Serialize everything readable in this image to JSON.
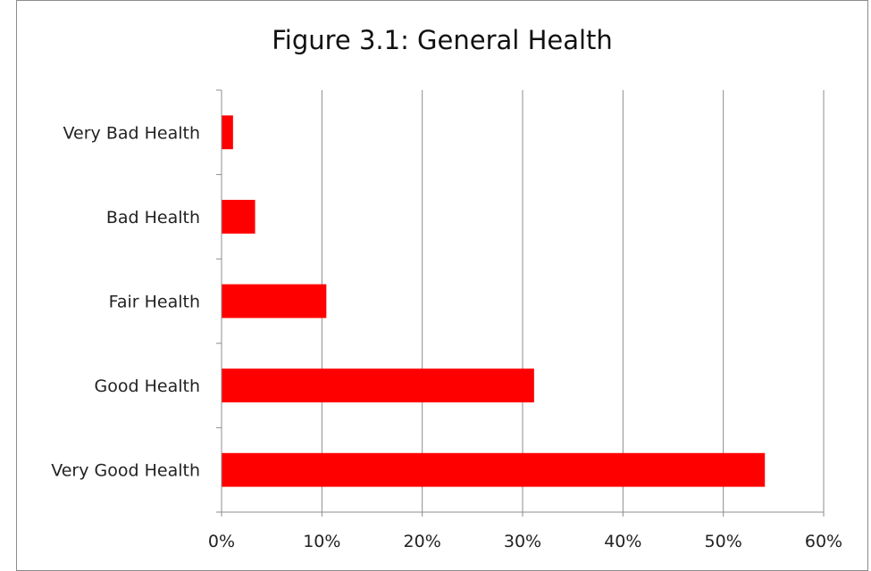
{
  "chart_data": {
    "type": "bar",
    "orientation": "horizontal",
    "title": "Figure 3.1: General Health",
    "xlabel": "",
    "ylabel": "",
    "categories": [
      "Very Bad Health",
      "Bad Health",
      "Fair Health",
      "Good Health",
      "Very Good Health"
    ],
    "values": [
      1.1,
      3.3,
      10.4,
      31.1,
      54.1
    ],
    "xlim": [
      0,
      60
    ],
    "x_ticks": [
      0,
      10,
      20,
      30,
      40,
      50,
      60
    ],
    "x_tick_labels": [
      "0%",
      "10%",
      "20%",
      "30%",
      "40%",
      "50%",
      "60%"
    ],
    "grid": "vertical",
    "legend": "none",
    "bar_color": "#ff0000",
    "grid_color": "#8c8c8c"
  }
}
